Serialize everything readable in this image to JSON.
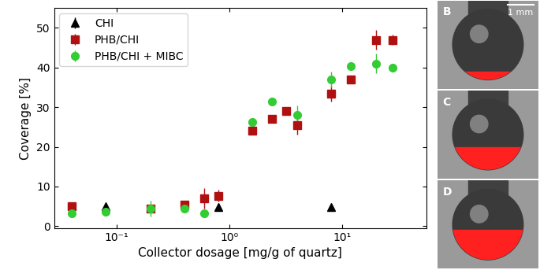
{
  "chart_data": {
    "type": "scatter",
    "x_label": "Collector dosage [mg/g of quartz]",
    "y_label": "Coverage [%]",
    "log": "x",
    "grid": false,
    "legend": "upper left",
    "xlim": [
      0.028,
      56
    ],
    "xticks": [
      {
        "value": 0.1,
        "label": "10⁻¹"
      },
      {
        "value": 1,
        "label": "10⁰"
      },
      {
        "value": 10,
        "label": "10¹"
      }
    ],
    "ylim": [
      -0.5,
      55
    ],
    "yticks": [
      0,
      10,
      20,
      30,
      40,
      50
    ],
    "series": [
      {
        "name": "CHI",
        "color": "#000000",
        "marker": "triangle",
        "x": [
          0.08,
          0.8,
          8
        ],
        "values": [
          5.0,
          4.8,
          4.8
        ],
        "errors": [
          0.5,
          0.8,
          0.4
        ]
      },
      {
        "name": "PHB/CHI",
        "color": "#b01010",
        "marker": "square",
        "x": [
          0.04,
          0.2,
          0.4,
          0.6,
          0.8,
          1.6,
          2.4,
          3.2,
          4,
          8,
          12,
          20,
          28
        ],
        "values": [
          5.0,
          4.5,
          5.5,
          7.0,
          7.7,
          24.0,
          27.0,
          29.0,
          25.5,
          33.5,
          37.0,
          47.0,
          47.0
        ],
        "errors": [
          1.0,
          1.0,
          1.0,
          2.5,
          1.5,
          1.0,
          0.8,
          0.8,
          2.5,
          2.0,
          0.8,
          2.5,
          1.3
        ]
      },
      {
        "name": "PHB/CHI + MIBC",
        "color": "#33cc33",
        "marker": "circle",
        "x": [
          0.04,
          0.08,
          0.2,
          0.4,
          0.6,
          1.6,
          2.4,
          4,
          8,
          12,
          20,
          28
        ],
        "values": [
          3.2,
          3.7,
          4.5,
          4.5,
          3.2,
          26.2,
          31.5,
          28.0,
          37.0,
          40.3,
          41.0,
          40.0
        ],
        "errors": [
          0.8,
          0.8,
          2.0,
          1.0,
          0.8,
          0.8,
          0.8,
          2.5,
          2.0,
          0.8,
          2.5,
          1.0
        ]
      }
    ]
  },
  "panels": {
    "labels": [
      "B",
      "C",
      "D"
    ],
    "scale_bar": "1 mm"
  }
}
